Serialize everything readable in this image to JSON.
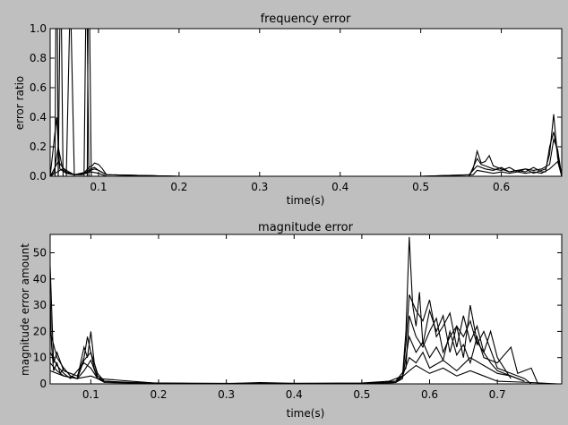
{
  "figure": {
    "background": "#bfbfbf",
    "plot_background": "#ffffff",
    "line_color": "#000000"
  },
  "chart_data": [
    {
      "type": "line",
      "title": "frequency error",
      "xlabel": "time(s)",
      "ylabel": "error ratio",
      "xlim": [
        0.04,
        0.675
      ],
      "ylim": [
        0.0,
        1.0
      ],
      "grid": false,
      "xticks": [
        0.1,
        0.2,
        0.3,
        0.4,
        0.5,
        0.6
      ],
      "xtick_labels": [
        "0.1",
        "0.2",
        "0.3",
        "0.4",
        "0.5",
        "0.6"
      ],
      "yticks": [
        0.0,
        0.2,
        0.4,
        0.6,
        0.8,
        1.0
      ],
      "ytick_labels": [
        "0.0",
        "0.2",
        "0.4",
        "0.6",
        "0.8",
        "1.0"
      ],
      "series": [
        {
          "x": [
            0.04,
            0.045,
            0.05,
            0.055,
            0.06,
            0.07,
            0.08,
            0.088,
            0.092,
            0.095,
            0.1,
            0.105,
            0.11,
            0.2,
            0.3,
            0.4,
            0.5,
            0.56,
            0.565,
            0.57,
            0.575,
            0.58,
            0.585,
            0.59,
            0.6,
            0.61,
            0.62,
            0.63,
            0.64,
            0.65,
            0.655,
            0.66,
            0.665,
            0.67,
            0.675
          ],
          "y": [
            0.0,
            0.03,
            0.2,
            0.06,
            0.04,
            0.01,
            0.01,
            0.06,
            0.07,
            0.09,
            0.08,
            0.05,
            0.01,
            0.0,
            0.0,
            0.0,
            0.0,
            0.0,
            0.05,
            0.17,
            0.09,
            0.1,
            0.14,
            0.07,
            0.05,
            0.03,
            0.04,
            0.03,
            0.06,
            0.03,
            0.03,
            0.2,
            0.3,
            0.15,
            0.0
          ]
        },
        {
          "x": [
            0.04,
            0.048,
            0.052,
            0.06,
            0.07,
            0.085,
            0.09,
            0.095,
            0.1,
            0.11,
            0.2,
            0.3,
            0.4,
            0.5,
            0.56,
            0.57,
            0.575,
            0.58,
            0.59,
            0.6,
            0.61,
            0.62,
            0.63,
            0.64,
            0.65,
            0.655,
            0.66,
            0.665,
            0.67,
            0.675
          ],
          "y": [
            0.0,
            0.4,
            0.05,
            0.02,
            0.01,
            0.03,
            0.05,
            0.06,
            0.04,
            0.01,
            0.0,
            0.0,
            0.0,
            0.0,
            0.0,
            0.12,
            0.08,
            0.07,
            0.05,
            0.04,
            0.06,
            0.03,
            0.05,
            0.02,
            0.04,
            0.05,
            0.15,
            0.42,
            0.12,
            0.0
          ]
        },
        {
          "x": [
            0.04,
            0.05,
            0.06,
            0.07,
            0.085,
            0.09,
            0.095,
            0.1,
            0.11,
            0.2,
            0.3,
            0.4,
            0.5,
            0.56,
            0.57,
            0.58,
            0.59,
            0.6,
            0.61,
            0.62,
            0.63,
            0.64,
            0.65,
            0.66,
            0.665,
            0.67,
            0.675
          ],
          "y": [
            0.0,
            0.1,
            0.03,
            0.01,
            0.02,
            0.04,
            0.05,
            0.04,
            0.01,
            0.0,
            0.0,
            0.0,
            0.0,
            0.01,
            0.07,
            0.05,
            0.04,
            0.06,
            0.03,
            0.04,
            0.05,
            0.04,
            0.05,
            0.08,
            0.25,
            0.18,
            0.0
          ]
        },
        {
          "x": [
            0.04,
            0.055,
            0.06,
            0.07,
            0.09,
            0.1,
            0.11,
            0.2,
            0.3,
            0.4,
            0.5,
            0.565,
            0.57,
            0.58,
            0.59,
            0.6,
            0.61,
            0.62,
            0.63,
            0.64,
            0.65,
            0.66,
            0.67,
            0.675
          ],
          "y": [
            0.0,
            0.05,
            0.02,
            0.01,
            0.03,
            0.02,
            0.0,
            0.0,
            0.0,
            0.0,
            0.0,
            0.01,
            0.04,
            0.03,
            0.02,
            0.03,
            0.02,
            0.03,
            0.02,
            0.03,
            0.02,
            0.05,
            0.1,
            0.0
          ]
        },
        {
          "x": [
            0.046,
            0.047,
            0.049,
            0.05,
            0.06
          ],
          "y": [
            0.0,
            1.0,
            1.0,
            0.0,
            0.0
          ]
        },
        {
          "x": [
            0.05,
            0.052,
            0.054,
            0.056,
            0.06
          ],
          "y": [
            0.0,
            1.0,
            1.0,
            0.0,
            0.0
          ]
        },
        {
          "x": [
            0.06,
            0.064,
            0.066,
            0.07,
            0.075
          ],
          "y": [
            0.0,
            1.0,
            1.0,
            0.0,
            0.0
          ]
        },
        {
          "x": [
            0.082,
            0.084,
            0.086,
            0.088,
            0.09
          ],
          "y": [
            0.0,
            1.0,
            1.0,
            0.0,
            0.0
          ]
        },
        {
          "x": [
            0.086,
            0.087,
            0.089,
            0.091,
            0.093
          ],
          "y": [
            0.0,
            1.0,
            1.0,
            0.0,
            0.0
          ]
        }
      ]
    },
    {
      "type": "line",
      "title": "magnitude error",
      "xlabel": "time(s)",
      "ylabel": "magnitude error amount",
      "xlim": [
        0.04,
        0.795
      ],
      "ylim": [
        0,
        57
      ],
      "grid": false,
      "xticks": [
        0.1,
        0.2,
        0.3,
        0.4,
        0.5,
        0.6,
        0.7
      ],
      "xtick_labels": [
        "0.1",
        "0.2",
        "0.3",
        "0.4",
        "0.5",
        "0.6",
        "0.7"
      ],
      "yticks": [
        0,
        10,
        20,
        30,
        40,
        50
      ],
      "ytick_labels": [
        "0",
        "10",
        "20",
        "30",
        "40",
        "50"
      ],
      "series": [
        {
          "x": [
            0.04,
            0.042,
            0.045,
            0.05,
            0.055,
            0.06,
            0.07,
            0.08,
            0.085,
            0.09,
            0.095,
            0.1,
            0.105,
            0.11,
            0.12,
            0.15,
            0.2,
            0.3,
            0.4,
            0.5,
            0.54,
            0.56,
            0.565,
            0.57,
            0.575,
            0.58,
            0.585,
            0.59,
            0.6,
            0.61,
            0.62,
            0.63,
            0.64,
            0.65,
            0.66,
            0.67,
            0.68,
            0.7,
            0.72,
            0.74,
            0.75
          ],
          "y": [
            35,
            15,
            5,
            8,
            4,
            6,
            3,
            2,
            8,
            14,
            10,
            20,
            8,
            3,
            1,
            0.5,
            0.3,
            0.2,
            0.2,
            0.3,
            1,
            3,
            20,
            56,
            30,
            22,
            35,
            15,
            28,
            20,
            26,
            12,
            22,
            18,
            24,
            15,
            20,
            6,
            4,
            2,
            0
          ]
        },
        {
          "x": [
            0.04,
            0.045,
            0.05,
            0.06,
            0.07,
            0.08,
            0.09,
            0.095,
            0.1,
            0.105,
            0.11,
            0.12,
            0.15,
            0.2,
            0.3,
            0.4,
            0.5,
            0.55,
            0.56,
            0.565,
            0.57,
            0.58,
            0.59,
            0.6,
            0.61,
            0.62,
            0.63,
            0.64,
            0.65,
            0.66,
            0.67,
            0.68,
            0.69,
            0.7,
            0.72,
            0.74
          ],
          "y": [
            45,
            8,
            12,
            5,
            4,
            3,
            10,
            18,
            12,
            6,
            2,
            1,
            0.5,
            0.2,
            0.1,
            0.1,
            0.2,
            1,
            3,
            15,
            34,
            28,
            24,
            32,
            18,
            22,
            27,
            14,
            26,
            16,
            22,
            12,
            8,
            5,
            3,
            1
          ]
        },
        {
          "x": [
            0.04,
            0.05,
            0.06,
            0.07,
            0.08,
            0.09,
            0.1,
            0.11,
            0.12,
            0.15,
            0.2,
            0.3,
            0.35,
            0.4,
            0.5,
            0.55,
            0.565,
            0.57,
            0.58,
            0.59,
            0.6,
            0.61,
            0.62,
            0.63,
            0.64,
            0.65,
            0.66,
            0.67,
            0.68,
            0.69,
            0.7,
            0.71,
            0.72
          ],
          "y": [
            20,
            10,
            6,
            3,
            2,
            9,
            12,
            4,
            1,
            0.5,
            0.2,
            0.1,
            0.5,
            0.2,
            0.2,
            1,
            6,
            26,
            18,
            14,
            20,
            25,
            12,
            18,
            22,
            10,
            30,
            16,
            12,
            20,
            10,
            6,
            2
          ]
        },
        {
          "x": [
            0.04,
            0.05,
            0.06,
            0.07,
            0.08,
            0.09,
            0.1,
            0.11,
            0.12,
            0.2,
            0.3,
            0.4,
            0.5,
            0.55,
            0.56,
            0.57,
            0.58,
            0.59,
            0.6,
            0.61,
            0.62,
            0.63,
            0.64,
            0.65,
            0.66,
            0.67,
            0.68,
            0.7,
            0.72,
            0.73,
            0.75,
            0.76
          ],
          "y": [
            12,
            7,
            4,
            2,
            5,
            8,
            6,
            2,
            0.5,
            0.2,
            0.1,
            0.1,
            0.1,
            0.5,
            2,
            18,
            12,
            16,
            10,
            14,
            9,
            20,
            11,
            15,
            8,
            18,
            10,
            8,
            14,
            4,
            6,
            0
          ]
        },
        {
          "x": [
            0.04,
            0.05,
            0.06,
            0.08,
            0.09,
            0.1,
            0.11,
            0.2,
            0.3,
            0.4,
            0.5,
            0.55,
            0.56,
            0.57,
            0.58,
            0.59,
            0.6,
            0.62,
            0.64,
            0.66,
            0.68,
            0.7,
            0.72,
            0.74
          ],
          "y": [
            8,
            5,
            3,
            2,
            5,
            9,
            2,
            0.2,
            0.1,
            0.1,
            0.1,
            0.5,
            3,
            10,
            8,
            12,
            6,
            9,
            5,
            10,
            7,
            4,
            3,
            1
          ]
        },
        {
          "x": [
            0.04,
            0.06,
            0.08,
            0.1,
            0.12,
            0.2,
            0.3,
            0.4,
            0.5,
            0.55,
            0.57,
            0.58,
            0.6,
            0.62,
            0.64,
            0.66,
            0.68,
            0.7,
            0.75,
            0.79
          ],
          "y": [
            5,
            3,
            2,
            3,
            1,
            0.1,
            0.1,
            0.1,
            0.1,
            0.5,
            5,
            7,
            4,
            6,
            3,
            5,
            3,
            1,
            0.5,
            0
          ]
        }
      ]
    }
  ]
}
